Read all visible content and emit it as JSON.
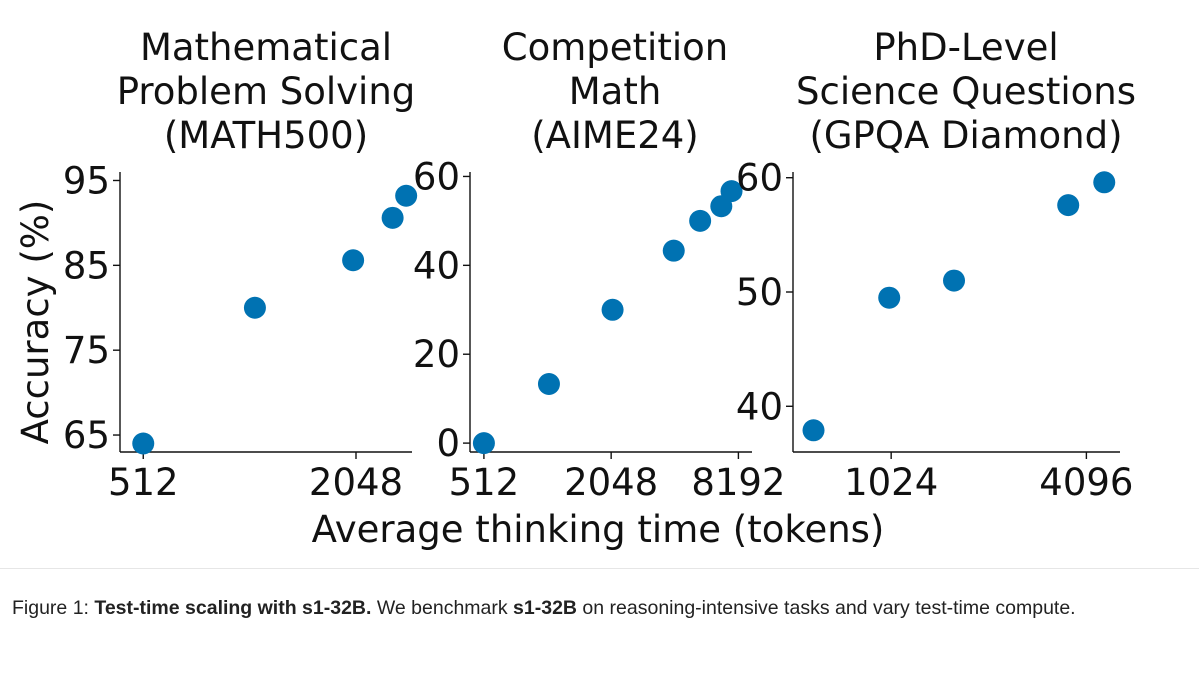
{
  "chart_data": [
    {
      "type": "scatter",
      "title": "Mathematical\nProblem Solving\n(MATH500)",
      "ylabel": "Accuracy (%)",
      "xscale": "log2",
      "xlim": [
        440,
        2950
      ],
      "ylim": [
        63,
        96
      ],
      "xticks": [
        512,
        2048
      ],
      "xtick_labels": [
        "512",
        "2048"
      ],
      "yticks": [
        65,
        75,
        85,
        95
      ],
      "ytick_labels": [
        "65",
        "75",
        "85",
        "95"
      ],
      "color": "#0072B2",
      "x": [
        512,
        1060,
        2010,
        2600,
        2840
      ],
      "y": [
        64,
        80,
        85.6,
        90.6,
        93.2
      ]
    },
    {
      "type": "scatter",
      "title": "Competition\nMath\n(AIME24)",
      "ylabel": "",
      "xscale": "log2",
      "xlim": [
        440,
        9500
      ],
      "ylim": [
        -2,
        61
      ],
      "xticks": [
        512,
        2048,
        8192
      ],
      "xtick_labels": [
        "512",
        "2048",
        "8192"
      ],
      "yticks": [
        0,
        20,
        40,
        60
      ],
      "ytick_labels": [
        "0",
        "20",
        "40",
        "60"
      ],
      "color": "#0072B2",
      "x": [
        512,
        1040,
        2080,
        4050,
        5400,
        6800,
        7600
      ],
      "y": [
        0,
        13.3,
        30,
        43.3,
        50,
        53.3,
        56.7
      ]
    },
    {
      "type": "scatter",
      "title": "PhD-Level\nScience Questions\n(GPQA Diamond)",
      "ylabel": "",
      "xscale": "log2",
      "xlim": [
        510,
        5200
      ],
      "ylim": [
        36,
        60.5
      ],
      "xticks": [
        1024,
        4096
      ],
      "xtick_labels": [
        "1024",
        "4096"
      ],
      "yticks": [
        40,
        50,
        60
      ],
      "ytick_labels": [
        "40",
        "50",
        "60"
      ],
      "color": "#0072B2",
      "x": [
        590,
        1010,
        1600,
        3600,
        4650
      ],
      "y": [
        37.9,
        49.5,
        51,
        57.6,
        59.6
      ]
    }
  ],
  "shared_xlabel": "Average thinking time (tokens)",
  "caption": {
    "label": "Figure 1: ",
    "bold_title": "Test-time scaling with s1-32B.",
    "text_1": " We benchmark ",
    "bold_model": "s1-32B",
    "text_2": " on reasoning-intensive tasks and vary test-time compute."
  }
}
